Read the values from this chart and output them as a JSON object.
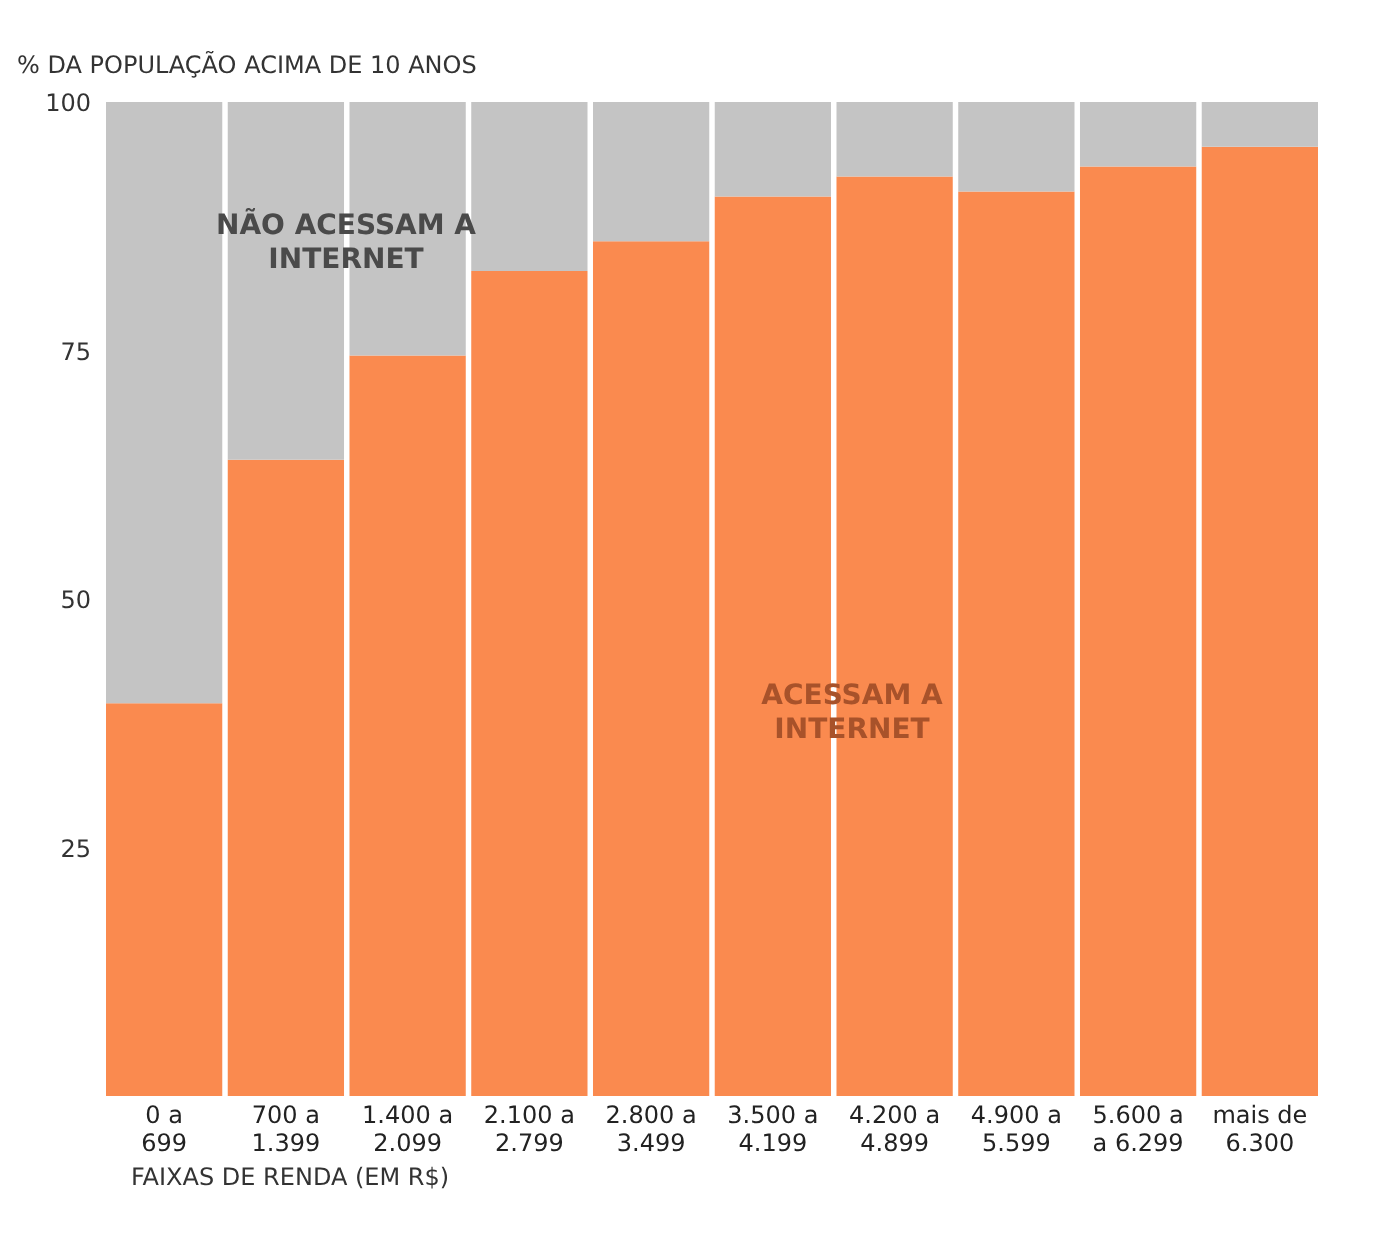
{
  "chart_data": {
    "type": "bar",
    "stacked": true,
    "ylabel": "% DA POPULAÇÃO ACIMA DE 10 ANOS",
    "xlabel": "FAIXAS DE RENDA (EM R$)",
    "categories": [
      "0 a\n699",
      "700 a\n1.399",
      "1.400 a\n2.099",
      "2.100 a\n2.799",
      "2.800 a\n3.499",
      "3.500 a\n4.199",
      "4.200 a\n4.899",
      "4.900 a\n5.599",
      "5.600 a\na 6.299",
      "mais de\n6.300"
    ],
    "series": [
      {
        "name": "ACESSAM A\nINTERNET",
        "color": "#fa8a4f",
        "values": [
          39.5,
          64,
          74.5,
          83,
          86,
          90.5,
          92.5,
          91,
          93.5,
          95.5
        ]
      },
      {
        "name": "NÃO ACESSAM A\nINTERNET",
        "color": "#c4c4c4",
        "values": [
          60.5,
          36,
          25.5,
          17,
          14,
          9.5,
          7.5,
          9,
          6.5,
          4.5
        ]
      }
    ],
    "ylim": [
      0,
      100
    ],
    "yticks": [
      25,
      50,
      75,
      100
    ],
    "grid": false,
    "legend": false
  }
}
